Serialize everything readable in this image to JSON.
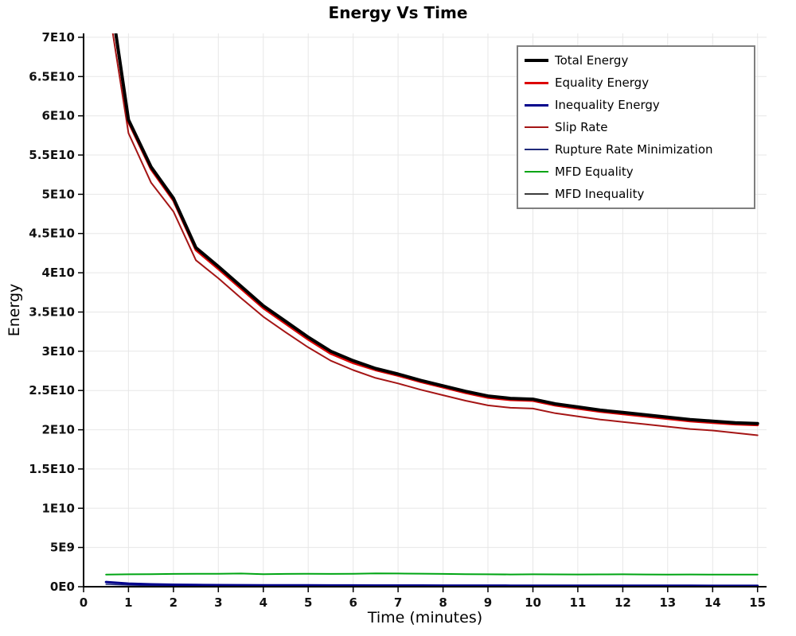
{
  "chart_data": {
    "type": "line",
    "title": "Energy Vs Time",
    "xlabel": "Time (minutes)",
    "ylabel": "Energy",
    "xlim": [
      0,
      15.2
    ],
    "ylim": [
      0,
      70500000000.0
    ],
    "grid": true,
    "legend_position": "top-right",
    "x": [
      0.5,
      1,
      1.5,
      2,
      2.5,
      3,
      3.5,
      4,
      4.5,
      5,
      5.5,
      6,
      6.5,
      7,
      7.5,
      8,
      8.5,
      9,
      9.5,
      10,
      10.5,
      11,
      11.5,
      12,
      12.5,
      13,
      13.5,
      14,
      14.5,
      15
    ],
    "xticks": [
      {
        "v": 0,
        "label": "0"
      },
      {
        "v": 1,
        "label": "1"
      },
      {
        "v": 2,
        "label": "2"
      },
      {
        "v": 3,
        "label": "3"
      },
      {
        "v": 4,
        "label": "4"
      },
      {
        "v": 5,
        "label": "5"
      },
      {
        "v": 6,
        "label": "6"
      },
      {
        "v": 7,
        "label": "7"
      },
      {
        "v": 8,
        "label": "8"
      },
      {
        "v": 9,
        "label": "9"
      },
      {
        "v": 10,
        "label": "10"
      },
      {
        "v": 11,
        "label": "11"
      },
      {
        "v": 12,
        "label": "12"
      },
      {
        "v": 13,
        "label": "13"
      },
      {
        "v": 14,
        "label": "14"
      },
      {
        "v": 15,
        "label": "15"
      }
    ],
    "yticks": [
      {
        "v": 0,
        "label": "0E0"
      },
      {
        "v": 5000000000.0,
        "label": "5E9"
      },
      {
        "v": 10000000000.0,
        "label": "1E10"
      },
      {
        "v": 15000000000.0,
        "label": "1.5E10"
      },
      {
        "v": 20000000000.0,
        "label": "2E10"
      },
      {
        "v": 25000000000.0,
        "label": "2.5E10"
      },
      {
        "v": 30000000000.0,
        "label": "3E10"
      },
      {
        "v": 35000000000.0,
        "label": "3.5E10"
      },
      {
        "v": 40000000000.0,
        "label": "4E10"
      },
      {
        "v": 45000000000.0,
        "label": "4.5E10"
      },
      {
        "v": 50000000000.0,
        "label": "5E10"
      },
      {
        "v": 55000000000.0,
        "label": "5.5E10"
      },
      {
        "v": 60000000000.0,
        "label": "6E10"
      },
      {
        "v": 65000000000.0,
        "label": "6.5E10"
      },
      {
        "v": 70000000000.0,
        "label": "7E10"
      }
    ],
    "series": [
      {
        "id": "total-energy",
        "name": "Total Energy",
        "color": "#000000",
        "lw": 4,
        "z": 7,
        "values": [
          79000000000.0,
          59500000000.0,
          53500000000.0,
          49500000000.0,
          43200000000.0,
          40800000000.0,
          38300000000.0,
          35800000000.0,
          33800000000.0,
          31800000000.0,
          30000000000.0,
          28800000000.0,
          27800000000.0,
          27100000000.0,
          26300000000.0,
          25600000000.0,
          24900000000.0,
          24300000000.0,
          24000000000.0,
          23900000000.0,
          23300000000.0,
          22900000000.0,
          22500000000.0,
          22200000000.0,
          21900000000.0,
          21600000000.0,
          21300000000.0,
          21100000000.0,
          20900000000.0,
          20800000000.0
        ]
      },
      {
        "id": "equality-energy",
        "name": "Equality Energy",
        "color": "#dd0000",
        "lw": 3,
        "z": 6,
        "values": [
          78700000000.0,
          59200000000.0,
          53200000000.0,
          49200000000.0,
          42900000000.0,
          40500000000.0,
          38000000000.0,
          35500000000.0,
          33500000000.0,
          31500000000.0,
          29700000000.0,
          28500000000.0,
          27600000000.0,
          26900000000.0,
          26100000000.0,
          25400000000.0,
          24700000000.0,
          24100000000.0,
          23800000000.0,
          23700000000.0,
          23100000000.0,
          22700000000.0,
          22300000000.0,
          22000000000.0,
          21700000000.0,
          21400000000.0,
          21100000000.0,
          20900000000.0,
          20700000000.0,
          20600000000.0
        ]
      },
      {
        "id": "inequality-energy",
        "name": "Inequality Energy",
        "color": "#00008c",
        "lw": 3,
        "z": 3,
        "values": [
          600000000.0,
          400000000.0,
          300000000.0,
          250000000.0,
          220000000.0,
          200000000.0,
          190000000.0,
          180000000.0,
          170000000.0,
          170000000.0,
          160000000.0,
          160000000.0,
          150000000.0,
          150000000.0,
          150000000.0,
          140000000.0,
          140000000.0,
          140000000.0,
          130000000.0,
          130000000.0,
          130000000.0,
          130000000.0,
          120000000.0,
          120000000.0,
          120000000.0,
          120000000.0,
          120000000.0,
          110000000.0,
          110000000.0,
          110000000.0
        ]
      },
      {
        "id": "slip-rate",
        "name": "Slip Rate",
        "color": "#a51515",
        "lw": 2,
        "z": 5,
        "values": [
          76000000000.0,
          57800000000.0,
          51500000000.0,
          47800000000.0,
          41600000000.0,
          39300000000.0,
          36800000000.0,
          34400000000.0,
          32400000000.0,
          30500000000.0,
          28800000000.0,
          27600000000.0,
          26600000000.0,
          25900000000.0,
          25100000000.0,
          24400000000.0,
          23700000000.0,
          23100000000.0,
          22800000000.0,
          22700000000.0,
          22100000000.0,
          21700000000.0,
          21300000000.0,
          21000000000.0,
          20700000000.0,
          20400000000.0,
          20100000000.0,
          19900000000.0,
          19600000000.0,
          19300000000.0
        ]
      },
      {
        "id": "rupture-rate-minimization",
        "name": "Rupture Rate Minimization",
        "color": "#1f2a7a",
        "lw": 1.5,
        "z": 2,
        "values": [
          300000000.0,
          200000000.0,
          150000000.0,
          120000000.0,
          100000000.0,
          90000000.0,
          80000000.0,
          80000000.0,
          70000000.0,
          70000000.0,
          70000000.0,
          60000000.0,
          60000000.0,
          60000000.0,
          60000000.0,
          50000000.0,
          50000000.0,
          50000000.0,
          50000000.0,
          50000000.0,
          50000000.0,
          50000000.0,
          40000000.0,
          40000000.0,
          40000000.0,
          40000000.0,
          40000000.0,
          40000000.0,
          40000000.0,
          40000000.0
        ]
      },
      {
        "id": "mfd-equality",
        "name": "MFD Equality",
        "color": "#00a513",
        "lw": 2,
        "z": 4,
        "values": [
          1550000000.0,
          1580000000.0,
          1600000000.0,
          1630000000.0,
          1650000000.0,
          1650000000.0,
          1680000000.0,
          1600000000.0,
          1630000000.0,
          1650000000.0,
          1630000000.0,
          1650000000.0,
          1700000000.0,
          1680000000.0,
          1660000000.0,
          1630000000.0,
          1600000000.0,
          1580000000.0,
          1560000000.0,
          1580000000.0,
          1570000000.0,
          1560000000.0,
          1570000000.0,
          1580000000.0,
          1560000000.0,
          1550000000.0,
          1560000000.0,
          1540000000.0,
          1540000000.0,
          1550000000.0
        ]
      },
      {
        "id": "mfd-inequality",
        "name": "MFD Inequality",
        "color": "#3c3c3c",
        "lw": 1.5,
        "z": 1,
        "values": [
          20000000.0,
          20000000.0,
          20000000.0,
          20000000.0,
          20000000.0,
          20000000.0,
          20000000.0,
          20000000.0,
          20000000.0,
          20000000.0,
          20000000.0,
          20000000.0,
          20000000.0,
          20000000.0,
          20000000.0,
          20000000.0,
          20000000.0,
          20000000.0,
          20000000.0,
          20000000.0,
          20000000.0,
          20000000.0,
          20000000.0,
          20000000.0,
          20000000.0,
          20000000.0,
          20000000.0,
          20000000.0,
          20000000.0,
          20000000.0
        ]
      }
    ]
  }
}
